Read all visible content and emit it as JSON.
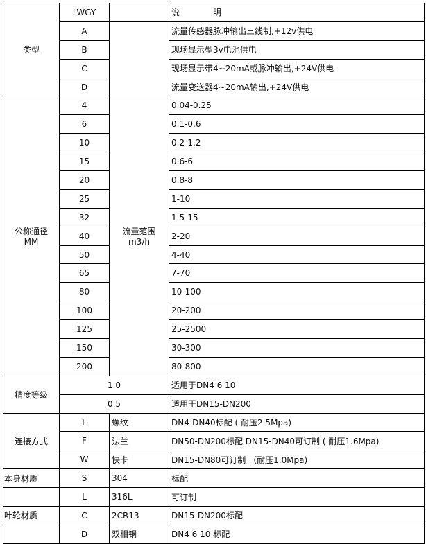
{
  "header": {
    "model": "LWGY",
    "desc_left": "说",
    "desc_right": "明"
  },
  "type_section": {
    "label": "类型",
    "rows": [
      {
        "code": "A",
        "desc": "流量传感器脉冲输出三线制,+12v供电"
      },
      {
        "code": "B",
        "desc": "现场显示型3v电池供电"
      },
      {
        "code": "C",
        "desc": "现场显示带4~20mA或脉冲输出,+24V供电"
      },
      {
        "code": "D",
        "desc": "流量变送器4~20mA输出,+24V供电"
      }
    ]
  },
  "diameter_section": {
    "label_line1": "公称通径",
    "label_line2": "MM",
    "range_label_line1": "流量范围",
    "range_label_line2": "m3/h",
    "rows": [
      {
        "size": "4",
        "range": "0.04-0.25"
      },
      {
        "size": "6",
        "range": "0.1-0.6"
      },
      {
        "size": "10",
        "range": "0.2-1.2"
      },
      {
        "size": "15",
        "range": "0.6-6"
      },
      {
        "size": "20",
        "range": "0.8-8"
      },
      {
        "size": "25",
        "range": "1-10"
      },
      {
        "size": "32",
        "range": "1.5-15"
      },
      {
        "size": "40",
        "range": "2-20"
      },
      {
        "size": "50",
        "range": "4-40"
      },
      {
        "size": "65",
        "range": "7-70"
      },
      {
        "size": "80",
        "range": "10-100"
      },
      {
        "size": "100",
        "range": "20-200"
      },
      {
        "size": "125",
        "range": "25-2500"
      },
      {
        "size": "150",
        "range": "30-300"
      },
      {
        "size": "200",
        "range": "80-800"
      }
    ]
  },
  "accuracy_section": {
    "label": "精度等级",
    "rows": [
      {
        "grade": "1.0",
        "desc": "适用于DN4  6  10"
      },
      {
        "grade": "0.5",
        "desc": "适用于DN15-DN200"
      }
    ]
  },
  "connection_section": {
    "label": "连接方式",
    "rows": [
      {
        "code": "L",
        "name": "螺纹",
        "desc": "DN4-DN40标配 ( 耐压2.5Mpa)"
      },
      {
        "code": "F",
        "name": "法兰",
        "desc": "DN50-DN200标配 DN15-DN40可订制 ( 耐压1.6Mpa)"
      },
      {
        "code": "W",
        "name": "快卡",
        "desc": "DN15-DN80可订制 （耐压1.0Mpa)"
      }
    ]
  },
  "material_rows": [
    {
      "label": "本身材质",
      "code": "S",
      "name": "304",
      "desc": "标配"
    },
    {
      "label": "",
      "code": "L",
      "name": "316L",
      "desc": "可订制"
    },
    {
      "label": "叶轮材质",
      "code": "C",
      "name": "2CR13",
      "desc": "DN15-DN200标配"
    },
    {
      "label": "",
      "code": "D",
      "name": "双相钢",
      "desc": "DN4 6 10 标配"
    }
  ]
}
